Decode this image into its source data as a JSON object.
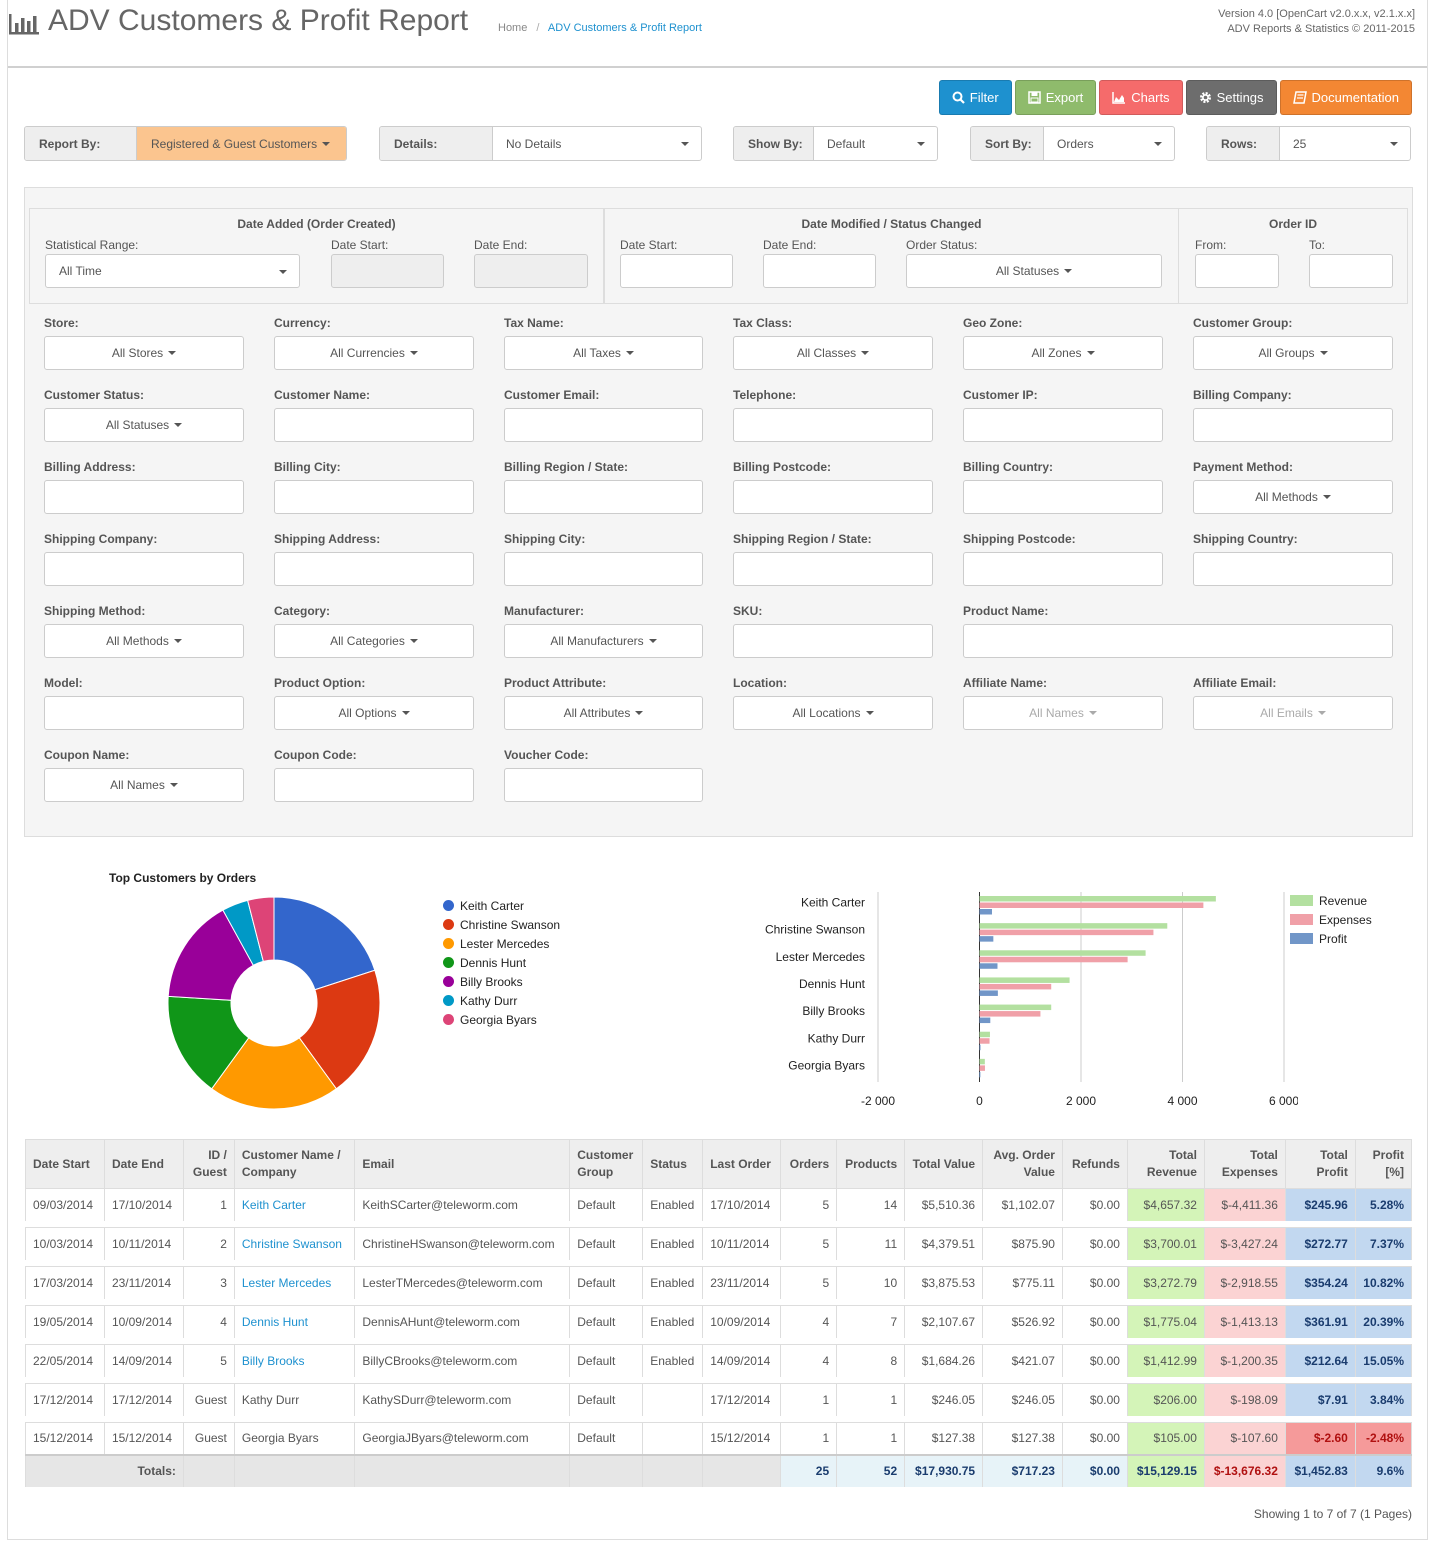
{
  "header": {
    "title": "ADV Customers & Profit Report",
    "breadcrumb": [
      "Home",
      "ADV Customers & Profit Report"
    ],
    "version_line1": "Version 4.0 [OpenCart v2.0.x.x, v2.1.x.x]",
    "version_line2": "ADV Reports & Statistics © 2011-2015"
  },
  "toolbar": {
    "filter": "Filter",
    "export": "Export",
    "charts": "Charts",
    "settings": "Settings",
    "documentation": "Documentation"
  },
  "report_row": {
    "report_by_label": "Report By:",
    "report_by_value": "Registered & Guest Customers",
    "details_label": "Details:",
    "details_value": "No Details",
    "show_by_label": "Show By:",
    "show_by_value": "Default",
    "sort_by_label": "Sort By:",
    "sort_by_value": "Orders",
    "rows_label": "Rows:",
    "rows_value": "25"
  },
  "dates": {
    "added_title": "Date Added (Order Created)",
    "stat_range_label": "Statistical Range:",
    "stat_range_value": "All Time",
    "date_start_label": "Date Start:",
    "date_end_label": "Date End:",
    "modified_title": "Date Modified / Status Changed",
    "order_status_label": "Order Status:",
    "order_status_value": "All Statuses",
    "order_id_title": "Order ID",
    "from_label": "From:",
    "to_label": "To:"
  },
  "filters": {
    "store": {
      "label": "Store:",
      "value": "All Stores"
    },
    "currency": {
      "label": "Currency:",
      "value": "All Currencies"
    },
    "tax_name": {
      "label": "Tax Name:",
      "value": "All Taxes"
    },
    "tax_class": {
      "label": "Tax Class:",
      "value": "All Classes"
    },
    "geo_zone": {
      "label": "Geo Zone:",
      "value": "All Zones"
    },
    "customer_group": {
      "label": "Customer Group:",
      "value": "All Groups"
    },
    "customer_status": {
      "label": "Customer Status:",
      "value": "All Statuses"
    },
    "customer_name": {
      "label": "Customer Name:"
    },
    "customer_email": {
      "label": "Customer Email:"
    },
    "telephone": {
      "label": "Telephone:"
    },
    "customer_ip": {
      "label": "Customer IP:"
    },
    "billing_company": {
      "label": "Billing Company:"
    },
    "billing_address": {
      "label": "Billing Address:"
    },
    "billing_city": {
      "label": "Billing City:"
    },
    "billing_region": {
      "label": "Billing Region / State:"
    },
    "billing_postcode": {
      "label": "Billing Postcode:"
    },
    "billing_country": {
      "label": "Billing Country:"
    },
    "payment_method": {
      "label": "Payment Method:",
      "value": "All Methods"
    },
    "shipping_company": {
      "label": "Shipping Company:"
    },
    "shipping_address": {
      "label": "Shipping Address:"
    },
    "shipping_city": {
      "label": "Shipping City:"
    },
    "shipping_region": {
      "label": "Shipping Region / State:"
    },
    "shipping_postcode": {
      "label": "Shipping Postcode:"
    },
    "shipping_country": {
      "label": "Shipping Country:"
    },
    "shipping_method": {
      "label": "Shipping Method:",
      "value": "All Methods"
    },
    "category": {
      "label": "Category:",
      "value": "All Categories"
    },
    "manufacturer": {
      "label": "Manufacturer:",
      "value": "All Manufacturers"
    },
    "sku": {
      "label": "SKU:"
    },
    "product_name": {
      "label": "Product Name:"
    },
    "model": {
      "label": "Model:"
    },
    "product_option": {
      "label": "Product Option:",
      "value": "All Options"
    },
    "product_attribute": {
      "label": "Product Attribute:",
      "value": "All Attributes"
    },
    "location": {
      "label": "Location:",
      "value": "All Locations"
    },
    "affiliate_name": {
      "label": "Affiliate Name:",
      "value": "All Names"
    },
    "affiliate_email": {
      "label": "Affiliate Email:",
      "value": "All Emails"
    },
    "coupon_name": {
      "label": "Coupon Name:",
      "value": "All Names"
    },
    "coupon_code": {
      "label": "Coupon Code:"
    },
    "voucher_code": {
      "label": "Voucher Code:"
    }
  },
  "chart_data": [
    {
      "type": "pie",
      "title": "Top Customers by Orders",
      "categories": [
        "Keith Carter",
        "Christine Swanson",
        "Lester Mercedes",
        "Dennis Hunt",
        "Billy Brooks",
        "Kathy Durr",
        "Georgia Byars"
      ],
      "values": [
        5,
        5,
        5,
        4,
        4,
        1,
        1
      ],
      "colors": [
        "#3366cc",
        "#dc3912",
        "#ff9900",
        "#109618",
        "#990099",
        "#0099c6",
        "#dd4477"
      ],
      "legend": "right"
    },
    {
      "type": "bar",
      "orientation": "horizontal",
      "categories": [
        "Keith Carter",
        "Christine Swanson",
        "Lester Mercedes",
        "Dennis Hunt",
        "Billy Brooks",
        "Kathy Durr",
        "Georgia Byars"
      ],
      "series": [
        {
          "name": "Revenue",
          "color": "#b3e0a0",
          "values": [
            4657.32,
            3700.01,
            3272.79,
            1775.04,
            1412.99,
            206.0,
            105.0
          ]
        },
        {
          "name": "Expenses",
          "color": "#f0a0a8",
          "values": [
            4411.36,
            3427.24,
            2918.55,
            1413.13,
            1200.35,
            198.09,
            107.6
          ]
        },
        {
          "name": "Profit",
          "color": "#7196c8",
          "values": [
            245.96,
            272.77,
            354.24,
            361.91,
            212.64,
            7.91,
            -2.6
          ]
        }
      ],
      "xticks": [
        "-2 000",
        "0",
        "2 000",
        "4 000",
        "6 000"
      ],
      "xlim": [
        -2000,
        6000
      ],
      "grid": true,
      "legend": "top-right"
    }
  ],
  "table": {
    "headers": [
      "Date Start",
      "Date End",
      "ID / Guest",
      "Customer Name / Company",
      "Email",
      "Customer Group",
      "Status",
      "Last Order",
      "Orders",
      "Products",
      "Total Value",
      "Avg. Order Value",
      "Refunds",
      "Total Revenue",
      "Total Expenses",
      "Total Profit",
      "Profit [%]"
    ],
    "rows": [
      {
        "start": "09/03/2014",
        "end": "17/10/2014",
        "id": "1",
        "name": "Keith Carter",
        "link": true,
        "email": "KeithSCarter@teleworm.com",
        "group": "Default",
        "status": "Enabled",
        "last": "17/10/2014",
        "orders": "5",
        "products": "14",
        "total": "$5,510.36",
        "avg": "$1,102.07",
        "refunds": "$0.00",
        "revenue": "$4,657.32",
        "expenses": "$-4,411.36",
        "profit": "$245.96",
        "pct": "5.28%",
        "neg": false
      },
      {
        "start": "10/03/2014",
        "end": "10/11/2014",
        "id": "2",
        "name": "Christine Swanson",
        "link": true,
        "email": "ChristineHSwanson@teleworm.com",
        "group": "Default",
        "status": "Enabled",
        "last": "10/11/2014",
        "orders": "5",
        "products": "11",
        "total": "$4,379.51",
        "avg": "$875.90",
        "refunds": "$0.00",
        "revenue": "$3,700.01",
        "expenses": "$-3,427.24",
        "profit": "$272.77",
        "pct": "7.37%",
        "neg": false
      },
      {
        "start": "17/03/2014",
        "end": "23/11/2014",
        "id": "3",
        "name": "Lester Mercedes",
        "link": true,
        "email": "LesterTMercedes@teleworm.com",
        "group": "Default",
        "status": "Enabled",
        "last": "23/11/2014",
        "orders": "5",
        "products": "10",
        "total": "$3,875.53",
        "avg": "$775.11",
        "refunds": "$0.00",
        "revenue": "$3,272.79",
        "expenses": "$-2,918.55",
        "profit": "$354.24",
        "pct": "10.82%",
        "neg": false
      },
      {
        "start": "19/05/2014",
        "end": "10/09/2014",
        "id": "4",
        "name": "Dennis Hunt",
        "link": true,
        "email": "DennisAHunt@teleworm.com",
        "group": "Default",
        "status": "Enabled",
        "last": "10/09/2014",
        "orders": "4",
        "products": "7",
        "total": "$2,107.67",
        "avg": "$526.92",
        "refunds": "$0.00",
        "revenue": "$1,775.04",
        "expenses": "$-1,413.13",
        "profit": "$361.91",
        "pct": "20.39%",
        "neg": false
      },
      {
        "start": "22/05/2014",
        "end": "14/09/2014",
        "id": "5",
        "name": "Billy Brooks",
        "link": true,
        "email": "BillyCBrooks@teleworm.com",
        "group": "Default",
        "status": "Enabled",
        "last": "14/09/2014",
        "orders": "4",
        "products": "8",
        "total": "$1,684.26",
        "avg": "$421.07",
        "refunds": "$0.00",
        "revenue": "$1,412.99",
        "expenses": "$-1,200.35",
        "profit": "$212.64",
        "pct": "15.05%",
        "neg": false
      },
      {
        "start": "17/12/2014",
        "end": "17/12/2014",
        "id": "Guest",
        "name": "Kathy Durr",
        "link": false,
        "email": "KathySDurr@teleworm.com",
        "group": "Default",
        "status": "",
        "last": "17/12/2014",
        "orders": "1",
        "products": "1",
        "total": "$246.05",
        "avg": "$246.05",
        "refunds": "$0.00",
        "revenue": "$206.00",
        "expenses": "$-198.09",
        "profit": "$7.91",
        "pct": "3.84%",
        "neg": false
      },
      {
        "start": "15/12/2014",
        "end": "15/12/2014",
        "id": "Guest",
        "name": "Georgia Byars",
        "link": false,
        "email": "GeorgiaJByars@teleworm.com",
        "group": "Default",
        "status": "",
        "last": "15/12/2014",
        "orders": "1",
        "products": "1",
        "total": "$127.38",
        "avg": "$127.38",
        "refunds": "$0.00",
        "revenue": "$105.00",
        "expenses": "$-107.60",
        "profit": "$-2.60",
        "pct": "-2.48%",
        "neg": true
      }
    ],
    "totals": {
      "label": "Totals:",
      "orders": "25",
      "products": "52",
      "total": "$17,930.75",
      "avg": "$717.23",
      "refunds": "$0.00",
      "revenue": "$15,129.15",
      "expenses": "$-13,676.32",
      "profit": "$1,452.83",
      "pct": "9.6%"
    }
  },
  "pagination": "Showing 1 to 7 of 7 (1 Pages)"
}
